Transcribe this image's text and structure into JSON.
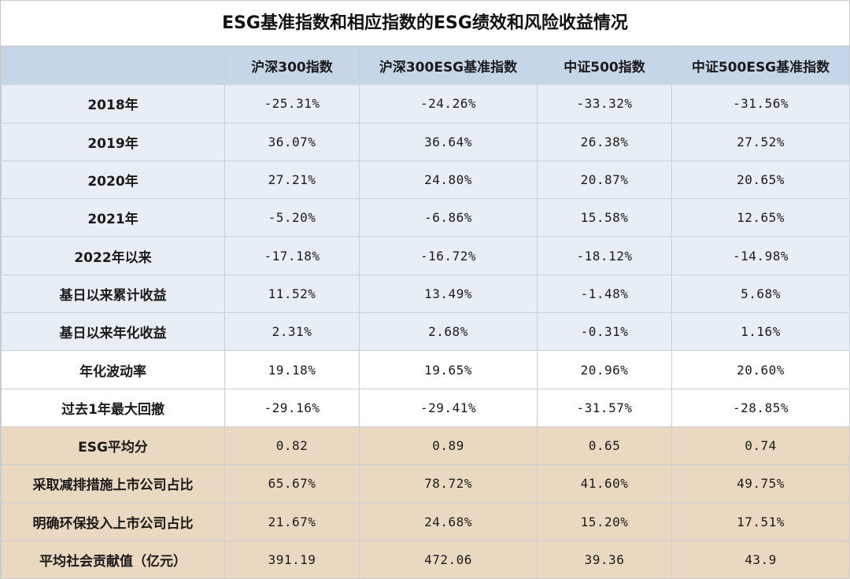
{
  "title": "ESG基准指数和相应指数的ESG绩效和风险收益情况",
  "table": {
    "headers": [
      "",
      "沪深300指数",
      "沪深300ESG基准指数",
      "中证500指数",
      "中证500ESG基准指数"
    ],
    "rows": [
      {
        "label": "2018年",
        "group": "blue",
        "values": [
          "-25.31%",
          "-24.26%",
          "-33.32%",
          "-31.56%"
        ]
      },
      {
        "label": "2019年",
        "group": "blue",
        "values": [
          "36.07%",
          "36.64%",
          "26.38%",
          "27.52%"
        ]
      },
      {
        "label": "2020年",
        "group": "blue",
        "values": [
          "27.21%",
          "24.80%",
          "20.87%",
          "20.65%"
        ]
      },
      {
        "label": "2021年",
        "group": "blue",
        "values": [
          "-5.20%",
          "-6.86%",
          "15.58%",
          "12.65%"
        ]
      },
      {
        "label": "2022年以来",
        "group": "blue",
        "values": [
          "-17.18%",
          "-16.72%",
          "-18.12%",
          "-14.98%"
        ]
      },
      {
        "label": "基日以来累计收益",
        "group": "blue",
        "values": [
          "11.52%",
          "13.49%",
          "-1.48%",
          "5.68%"
        ]
      },
      {
        "label": "基日以来年化收益",
        "group": "blue",
        "values": [
          "2.31%",
          "2.68%",
          "-0.31%",
          "1.16%"
        ]
      },
      {
        "label": "年化波动率",
        "group": "white",
        "values": [
          "19.18%",
          "19.65%",
          "20.96%",
          "20.60%"
        ]
      },
      {
        "label": "过去1年最大回撤",
        "group": "white",
        "values": [
          "-29.16%",
          "-29.41%",
          "-31.57%",
          "-28.85%"
        ]
      },
      {
        "label": "ESG平均分",
        "group": "tan",
        "values": [
          "0.82",
          "0.89",
          "0.65",
          "0.74"
        ]
      },
      {
        "label": "采取减排措施上市公司占比",
        "group": "tan",
        "values": [
          "65.67%",
          "78.72%",
          "41.60%",
          "49.75%"
        ]
      },
      {
        "label": "明确环保投入上市公司占比",
        "group": "tan",
        "values": [
          "21.67%",
          "24.68%",
          "15.20%",
          "17.51%"
        ]
      },
      {
        "label": "平均社会贡献值（亿元）",
        "group": "tan",
        "values": [
          "391.19",
          "472.06",
          "39.36",
          "43.9"
        ]
      }
    ]
  },
  "colors": {
    "header_bg": "#c5d6e8",
    "blue_rows": "#e8eef5",
    "white_rows": "#ffffff",
    "tan_rows": "#ead9c0",
    "grid": "#c9cfd6"
  }
}
